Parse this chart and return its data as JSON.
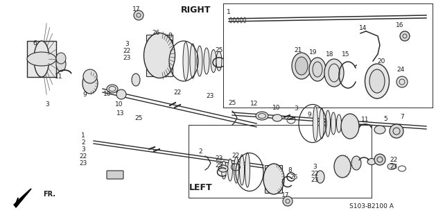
{
  "bg_color": "#ffffff",
  "line_color": "#2a2a2a",
  "text_color": "#1a1a1a",
  "fig_width": 6.29,
  "fig_height": 3.2,
  "dpi": 100,
  "title_right": "RIGHT",
  "title_left": "LEFT",
  "part_number": "S103-B2100 A",
  "fr_label": "FR.",
  "imgW": 629,
  "imgH": 320
}
